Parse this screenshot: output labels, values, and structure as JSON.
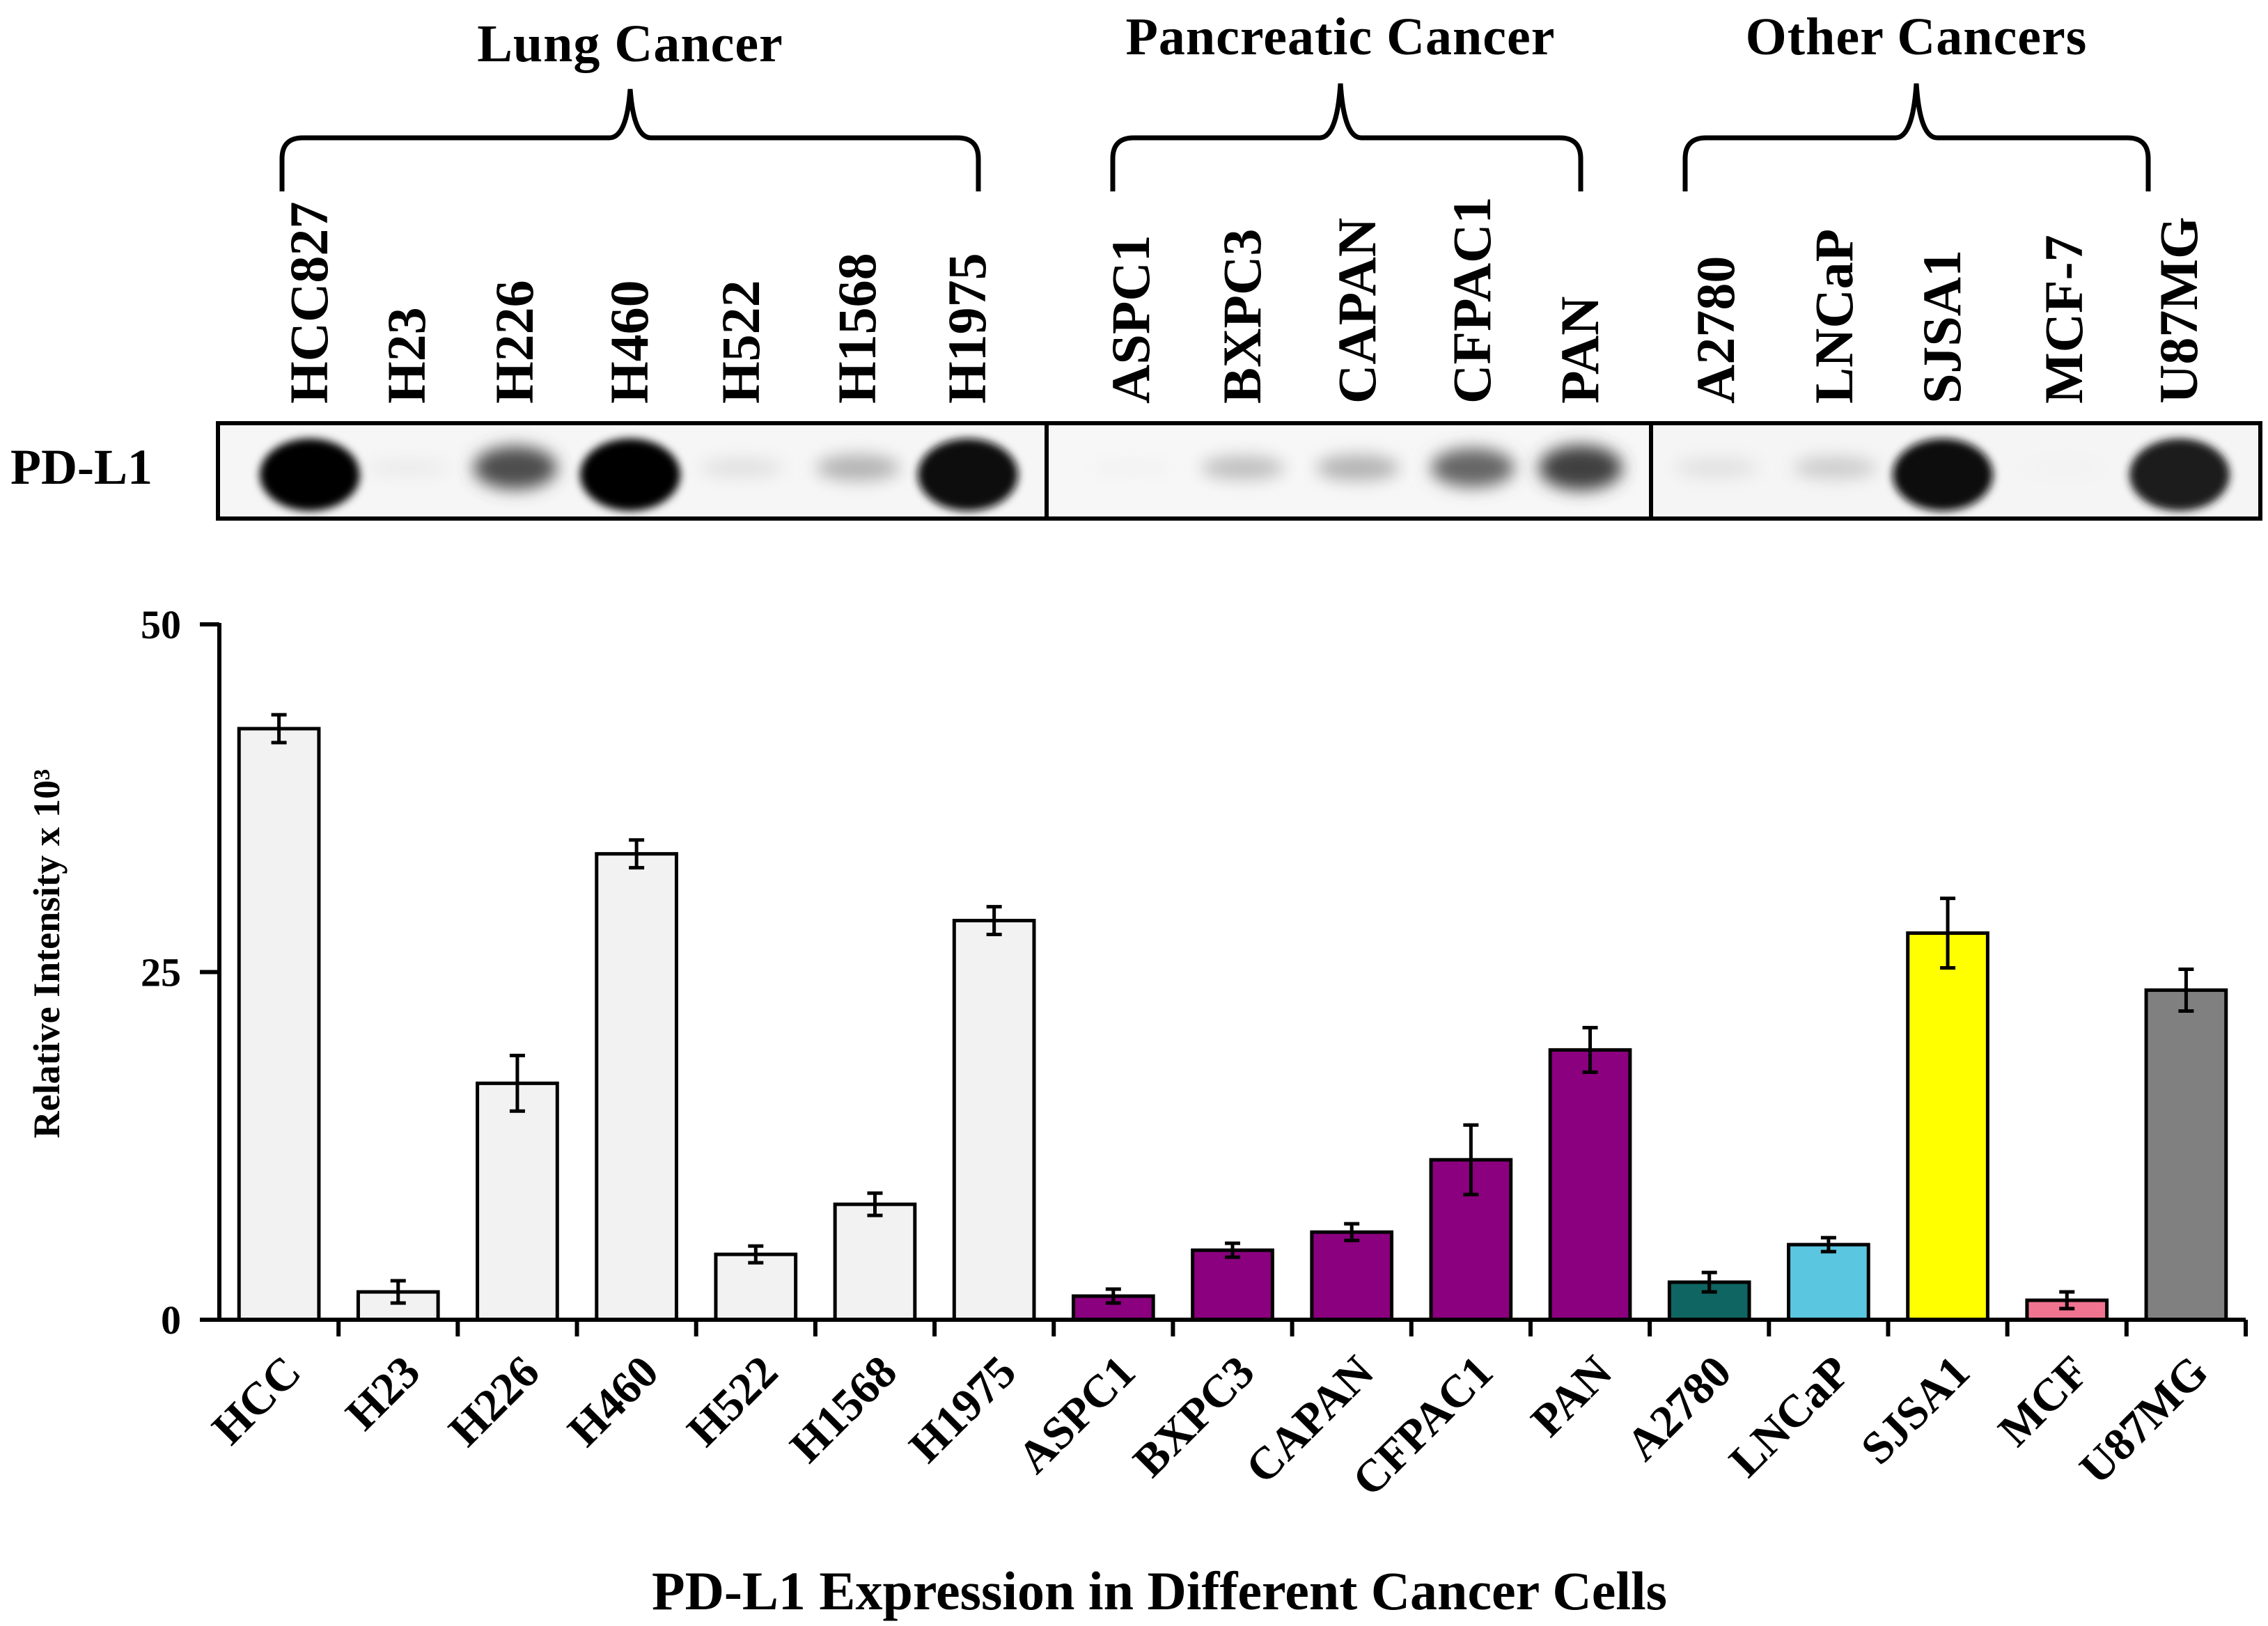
{
  "blot": {
    "row_label": "PD-L1",
    "groups": [
      {
        "label": "Lung Cancer",
        "lanes": [
          "HCC827",
          "H23",
          "H226",
          "H460",
          "H522",
          "H1568",
          "H1975"
        ]
      },
      {
        "label": "Pancreatic Cancer",
        "lanes": [
          "ASPC1",
          "BXPC3",
          "CAPAN",
          "CFPAC1",
          "PAN"
        ]
      },
      {
        "label": "Other Cancers",
        "lanes": [
          "A2780",
          "LNCaP",
          "SJSA1",
          "MCF-7",
          "U87MG"
        ]
      }
    ],
    "band_intensity": [
      1.0,
      0.08,
      0.7,
      1.0,
      0.12,
      0.3,
      0.95,
      0.05,
      0.25,
      0.3,
      0.6,
      0.75,
      0.12,
      0.2,
      0.95,
      0.05,
      0.9
    ]
  },
  "chart_data": {
    "type": "bar",
    "title": "PD-L1 Expression in Different Cancer Cells",
    "xlabel": "PD-L1 Expression in Different Cancer Cells",
    "ylabel": "Relative Intensity x 10³",
    "ylim": [
      0,
      50
    ],
    "yticks": [
      0,
      25,
      50
    ],
    "categories": [
      "HCC",
      "H23",
      "H226",
      "H460",
      "H522",
      "H1568",
      "H1975",
      "ASPC1",
      "BXPC3",
      "CAPAN",
      "CFPAC1",
      "PAN",
      "A2780",
      "LNCaP",
      "SJSA1",
      "MCF",
      "U87MG"
    ],
    "values": [
      42.5,
      2.0,
      17.0,
      33.5,
      4.7,
      8.3,
      28.7,
      1.7,
      5.0,
      6.3,
      11.5,
      19.4,
      2.7,
      5.4,
      27.8,
      1.4,
      23.7
    ],
    "errors": [
      1.0,
      0.8,
      2.0,
      1.0,
      0.6,
      0.8,
      1.0,
      0.5,
      0.5,
      0.6,
      2.5,
      1.6,
      0.7,
      0.5,
      2.5,
      0.6,
      1.5
    ],
    "colors": [
      "#f2f2f2",
      "#f2f2f2",
      "#f2f2f2",
      "#f2f2f2",
      "#f2f2f2",
      "#f2f2f2",
      "#f2f2f2",
      "#8b007e",
      "#8b007e",
      "#8b007e",
      "#8b007e",
      "#8b007e",
      "#0f6561",
      "#5bc6df",
      "#ffff00",
      "#f07490",
      "#808080"
    ]
  }
}
